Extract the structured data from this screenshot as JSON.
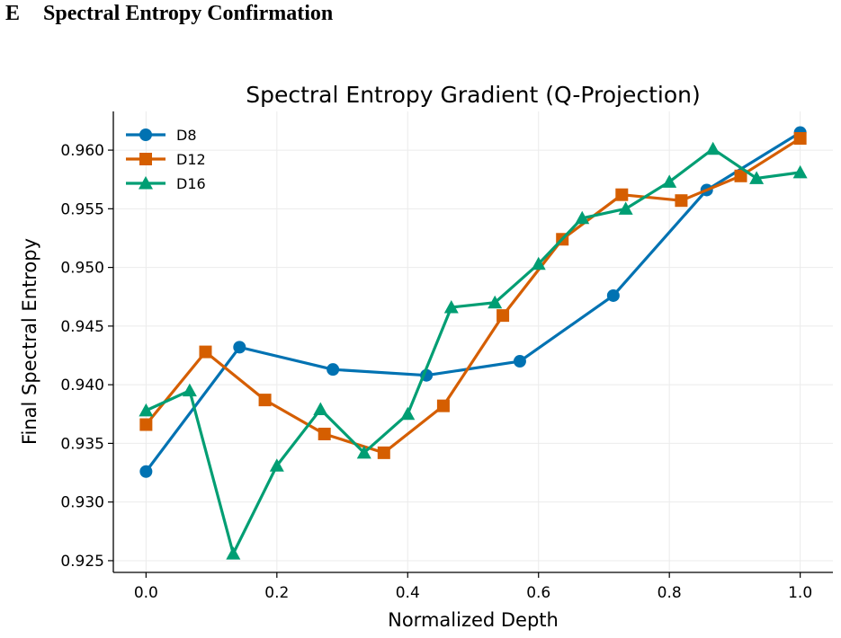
{
  "section": {
    "letter": "E",
    "title": "Spectral Entropy Confirmation"
  },
  "chart_data": {
    "type": "line",
    "title": "Spectral Entropy Gradient (Q-Projection)",
    "xlabel": "Normalized Depth",
    "ylabel": "Final Spectral Entropy",
    "xlim": [
      -0.05,
      1.05
    ],
    "ylim": [
      0.924,
      0.9633
    ],
    "xticks": [
      "0.0",
      "0.2",
      "0.4",
      "0.6",
      "0.8",
      "1.0"
    ],
    "yticks": [
      "0.925",
      "0.930",
      "0.935",
      "0.940",
      "0.945",
      "0.950",
      "0.955",
      "0.960"
    ],
    "grid": true,
    "legend_position": "top-left",
    "series": [
      {
        "name": "D8",
        "color": "#0072b2",
        "marker": "circle",
        "x": [
          0.0,
          0.1429,
          0.2857,
          0.4286,
          0.5714,
          0.7143,
          0.8571,
          1.0
        ],
        "y": [
          0.9326,
          0.9432,
          0.9413,
          0.9408,
          0.942,
          0.9476,
          0.9566,
          0.9615
        ]
      },
      {
        "name": "D12",
        "color": "#d55e00",
        "marker": "square",
        "x": [
          0.0,
          0.0909,
          0.1818,
          0.2727,
          0.3636,
          0.4545,
          0.5455,
          0.6364,
          0.7273,
          0.8182,
          0.9091,
          1.0
        ],
        "y": [
          0.9366,
          0.9428,
          0.9387,
          0.9358,
          0.9342,
          0.9382,
          0.9459,
          0.9524,
          0.9562,
          0.9557,
          0.9578,
          0.961
        ]
      },
      {
        "name": "D16",
        "color": "#009e73",
        "marker": "triangle",
        "x": [
          0.0,
          0.0667,
          0.1333,
          0.2,
          0.2667,
          0.3333,
          0.4,
          0.4667,
          0.5333,
          0.6,
          0.6667,
          0.7333,
          0.8,
          0.8667,
          0.9333,
          1.0
        ],
        "y": [
          0.9378,
          0.9395,
          0.9256,
          0.9331,
          0.9379,
          0.9342,
          0.9375,
          0.9466,
          0.947,
          0.9503,
          0.9542,
          0.955,
          0.9573,
          0.9601,
          0.9576,
          0.9581
        ]
      }
    ]
  }
}
